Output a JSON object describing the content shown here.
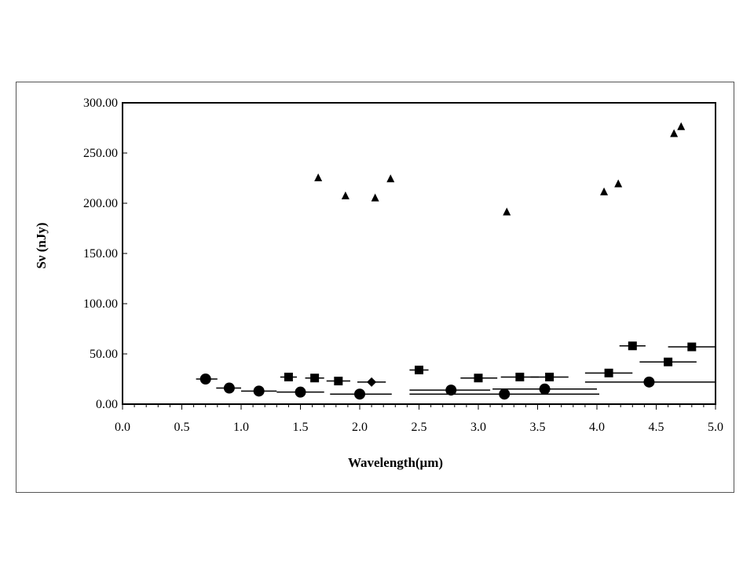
{
  "chart_data": {
    "type": "scatter",
    "title": "",
    "xlabel": "Wavelength(μm)",
    "ylabel": "Sν (nJy)",
    "xlim": [
      0.0,
      5.0
    ],
    "ylim": [
      0.0,
      300.0
    ],
    "x_ticks": [
      "0.0",
      "0.5",
      "1.0",
      "1.5",
      "2.0",
      "2.5",
      "3.0",
      "3.5",
      "4.0",
      "4.5",
      "5.0"
    ],
    "y_ticks": [
      "0.00",
      "50.00",
      "100.00",
      "150.00",
      "200.00",
      "250.00",
      "300.00"
    ],
    "grid": false,
    "legend": "none",
    "colors": {
      "marker": "#000000",
      "axis": "#000000"
    },
    "series": [
      {
        "marker": "triangle",
        "points": [
          {
            "x": 1.65,
            "y": 225
          },
          {
            "x": 1.88,
            "y": 207
          },
          {
            "x": 2.13,
            "y": 205
          },
          {
            "x": 2.26,
            "y": 224
          },
          {
            "x": 3.24,
            "y": 191
          },
          {
            "x": 4.06,
            "y": 211
          },
          {
            "x": 4.18,
            "y": 219
          },
          {
            "x": 4.65,
            "y": 269
          },
          {
            "x": 4.71,
            "y": 276
          }
        ]
      },
      {
        "marker": "square",
        "points": [
          {
            "x": 1.4,
            "y": 27,
            "xerr": [
              1.33,
              1.47
            ]
          },
          {
            "x": 1.62,
            "y": 26,
            "xerr": [
              1.54,
              1.7
            ]
          },
          {
            "x": 1.82,
            "y": 23,
            "xerr": [
              1.72,
              1.92
            ]
          },
          {
            "x": 2.5,
            "y": 34,
            "xerr": [
              2.42,
              2.58
            ]
          },
          {
            "x": 3.0,
            "y": 26,
            "xerr": [
              2.85,
              3.16
            ]
          },
          {
            "x": 3.35,
            "y": 27,
            "xerr": [
              3.19,
              3.51
            ]
          },
          {
            "x": 3.6,
            "y": 27,
            "xerr": [
              3.44,
              3.76
            ]
          },
          {
            "x": 4.1,
            "y": 31,
            "xerr": [
              3.9,
              4.3
            ]
          },
          {
            "x": 4.3,
            "y": 58,
            "xerr": [
              4.19,
              4.41
            ]
          },
          {
            "x": 4.6,
            "y": 42,
            "xerr": [
              4.36,
              4.84
            ]
          },
          {
            "x": 4.8,
            "y": 57,
            "xerr": [
              4.6,
              5.0
            ]
          }
        ]
      },
      {
        "marker": "diamond",
        "points": [
          {
            "x": 2.1,
            "y": 22,
            "xerr": [
              1.98,
              2.22
            ]
          }
        ]
      },
      {
        "marker": "circle",
        "points": [
          {
            "x": 0.7,
            "y": 25,
            "xerr": [
              0.62,
              0.8
            ]
          },
          {
            "x": 0.9,
            "y": 16,
            "xerr": [
              0.79,
              1.0
            ]
          },
          {
            "x": 1.15,
            "y": 13,
            "xerr": [
              1.0,
              1.3
            ]
          },
          {
            "x": 1.5,
            "y": 12,
            "xerr": [
              1.3,
              1.7
            ]
          },
          {
            "x": 2.0,
            "y": 10,
            "xerr": [
              1.75,
              2.27
            ]
          },
          {
            "x": 2.77,
            "y": 14,
            "xerr": [
              2.42,
              3.1
            ]
          },
          {
            "x": 3.22,
            "y": 10,
            "xerr": [
              2.42,
              4.02
            ]
          },
          {
            "x": 3.56,
            "y": 15,
            "xerr": [
              3.12,
              4.0
            ]
          },
          {
            "x": 4.44,
            "y": 22,
            "xerr": [
              3.9,
              5.0
            ]
          }
        ]
      }
    ]
  }
}
